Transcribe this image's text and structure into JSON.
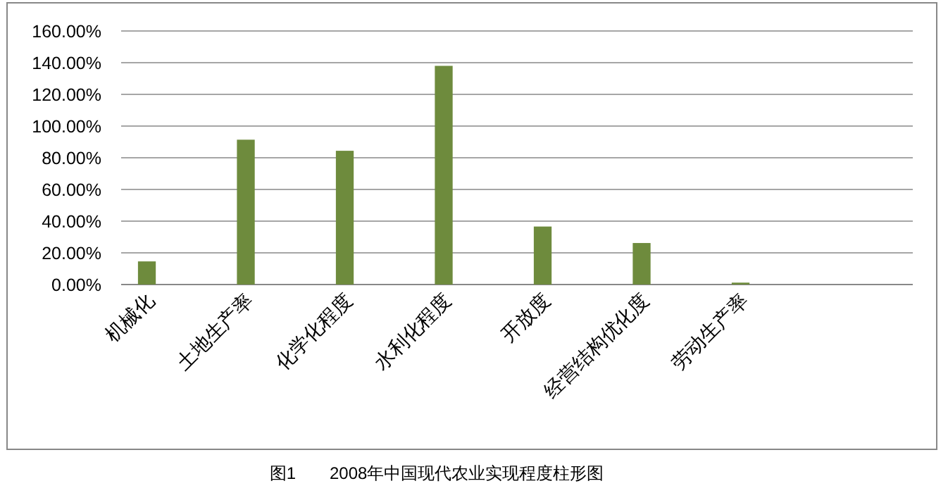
{
  "chart_data": {
    "type": "bar",
    "categories": [
      "机械化",
      "土地生产率",
      "化学化程度",
      "水利化程度",
      "开放度",
      "经营结构优化度",
      "劳动生产率",
      null
    ],
    "values": [
      14.6,
      91.4,
      84.4,
      138,
      36.6,
      26.2,
      1.2,
      null
    ],
    "color": "#6e8b3d",
    "ylim": [
      0,
      160
    ],
    "yticks": [
      {
        "value": 0,
        "label": "0.00%"
      },
      {
        "value": 20,
        "label": "20.00%"
      },
      {
        "value": 40,
        "label": "40.00%"
      },
      {
        "value": 60,
        "label": "60.00%"
      },
      {
        "value": 80,
        "label": "80.00%"
      },
      {
        "value": 100,
        "label": "100.00%"
      },
      {
        "value": 120,
        "label": "120.00%"
      },
      {
        "value": 140,
        "label": "140.00%"
      },
      {
        "value": 160,
        "label": "160.00%"
      }
    ],
    "grid": "y",
    "annotations": [
      "图1　　2008年中国现代农业实现程度柱形图"
    ]
  }
}
